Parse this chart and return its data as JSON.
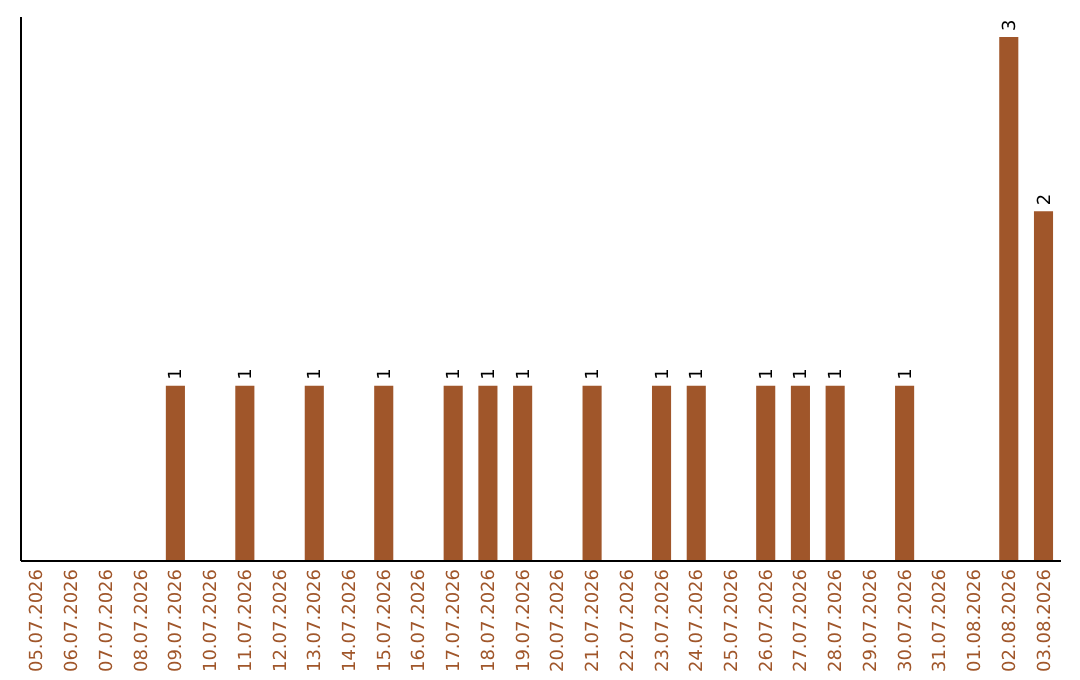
{
  "chart_data": {
    "type": "bar",
    "categories": [
      "05.07.2026",
      "06.07.2026",
      "07.07.2026",
      "08.07.2026",
      "09.07.2026",
      "10.07.2026",
      "11.07.2026",
      "12.07.2026",
      "13.07.2026",
      "14.07.2026",
      "15.07.2026",
      "16.07.2026",
      "17.07.2026",
      "18.07.2026",
      "19.07.2026",
      "20.07.2026",
      "21.07.2026",
      "22.07.2026",
      "23.07.2026",
      "24.07.2026",
      "25.07.2026",
      "26.07.2026",
      "27.07.2026",
      "28.07.2026",
      "29.07.2026",
      "30.07.2026",
      "31.07.2026",
      "01.08.2026",
      "02.08.2026",
      "03.08.2026"
    ],
    "values": [
      0,
      0,
      0,
      0,
      1,
      0,
      1,
      0,
      1,
      0,
      1,
      0,
      1,
      1,
      1,
      0,
      1,
      0,
      1,
      1,
      0,
      1,
      1,
      1,
      0,
      1,
      0,
      0,
      3,
      2
    ],
    "value_labels": [
      null,
      null,
      null,
      null,
      "1",
      null,
      "1",
      null,
      "1",
      null,
      "1",
      null,
      "1",
      "1",
      "1",
      null,
      "1",
      null,
      "1",
      "1",
      null,
      "1",
      "1",
      "1",
      null,
      "1",
      null,
      null,
      "3",
      "2"
    ],
    "color": "#a0562a",
    "tick_labels": "x"
  }
}
